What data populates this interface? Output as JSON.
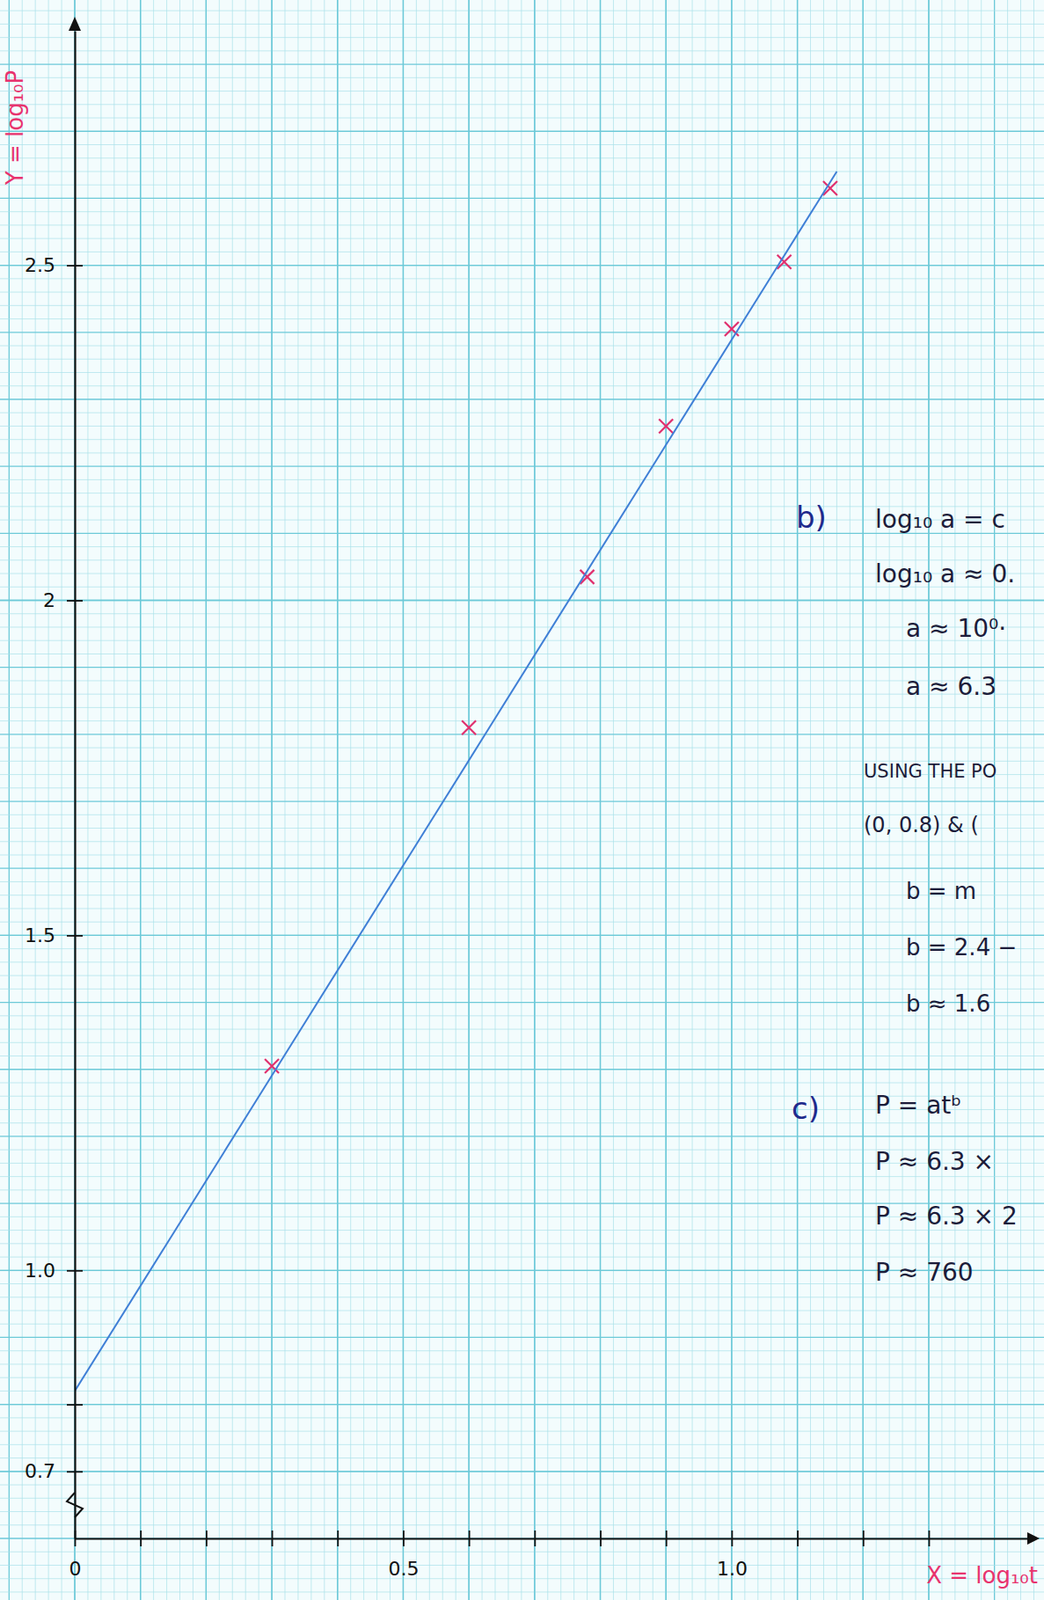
{
  "chart_data": {
    "type": "scatter",
    "x_label": "X = log₁₀t",
    "y_label": "Y = log₁₀P",
    "xlim": [
      0,
      1.45
    ],
    "ylim": [
      0.6,
      2.85
    ],
    "xticks": [
      {
        "value": 0,
        "label": "0"
      },
      {
        "value": 0.1,
        "label": null
      },
      {
        "value": 0.2,
        "label": null
      },
      {
        "value": 0.3,
        "label": null
      },
      {
        "value": 0.4,
        "label": null
      },
      0.5,
      {
        "value": 0.6,
        "label": null
      },
      {
        "value": 0.7,
        "label": null
      },
      {
        "value": 0.8,
        "label": null
      },
      {
        "value": 0.9,
        "label": null
      },
      {
        "value": 1.0,
        "label": "1.0"
      },
      {
        "value": 1.1,
        "label": null
      },
      {
        "value": 1.2,
        "label": null
      },
      {
        "value": 1.3,
        "label": null
      }
    ],
    "yticks": [
      0.7,
      {
        "value": 0.8,
        "label": null
      },
      {
        "value": 1.0,
        "label": "1.0"
      },
      1.5,
      2,
      2.5
    ],
    "grid": true,
    "series": [
      {
        "type": "scatter",
        "marker": "x",
        "color": "#e0306e",
        "x": [
          0.3,
          0.6,
          0.78,
          0.9,
          1.0,
          1.08,
          1.15
        ],
        "values": [
          1.305,
          1.81,
          2.035,
          2.26,
          2.405,
          2.505,
          2.615
        ]
      },
      {
        "type": "line",
        "line_style": "solid",
        "color": "#3f7fd6",
        "x": [
          0,
          1.16
        ],
        "values": [
          0.82,
          2.64
        ]
      }
    ],
    "annotations": [
      "b)",
      "log₁₀ a = c",
      "log₁₀ a ≈ 0.",
      "a ≈ 10⁰·",
      "a ≈ 6.3",
      "USING THE PO",
      "(0, 0.8) & (",
      "b = m",
      "b = 2.4 −",
      "b ≈ 1.6",
      "c)",
      "P = atᵇ",
      "P ≈ 6.3 ×",
      "P ≈ 6.3 × 2",
      "P ≈ 760"
    ]
  }
}
